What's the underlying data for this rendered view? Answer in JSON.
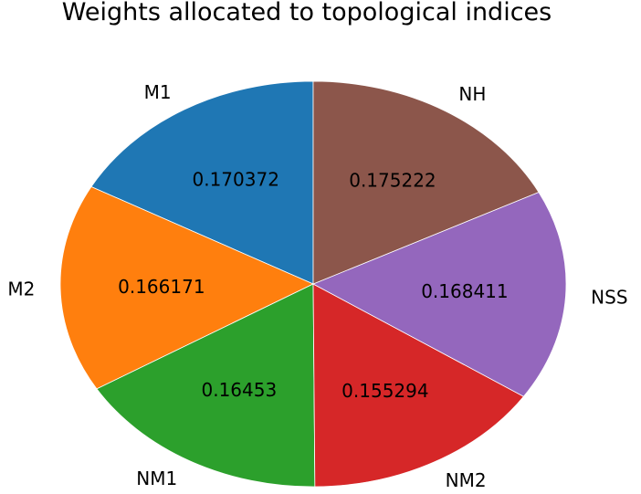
{
  "chart_data": {
    "type": "pie",
    "title": "Weights allocated to topological indices",
    "categories": [
      "M1",
      "M2",
      "NM1",
      "NM2",
      "NSS",
      "NH"
    ],
    "values": [
      0.170372,
      0.166171,
      0.16453,
      0.155294,
      0.168411,
      0.175222
    ],
    "value_labels": [
      "0.170372",
      "0.166171",
      "0.16453",
      "0.155294",
      "0.168411",
      "0.175222"
    ],
    "colors": [
      "#1f77b4",
      "#ff7f0e",
      "#2ca02c",
      "#d62728",
      "#9467bd",
      "#8c564b"
    ],
    "start_angle_deg": 90,
    "direction": "counterclockwise",
    "legend": "none"
  }
}
